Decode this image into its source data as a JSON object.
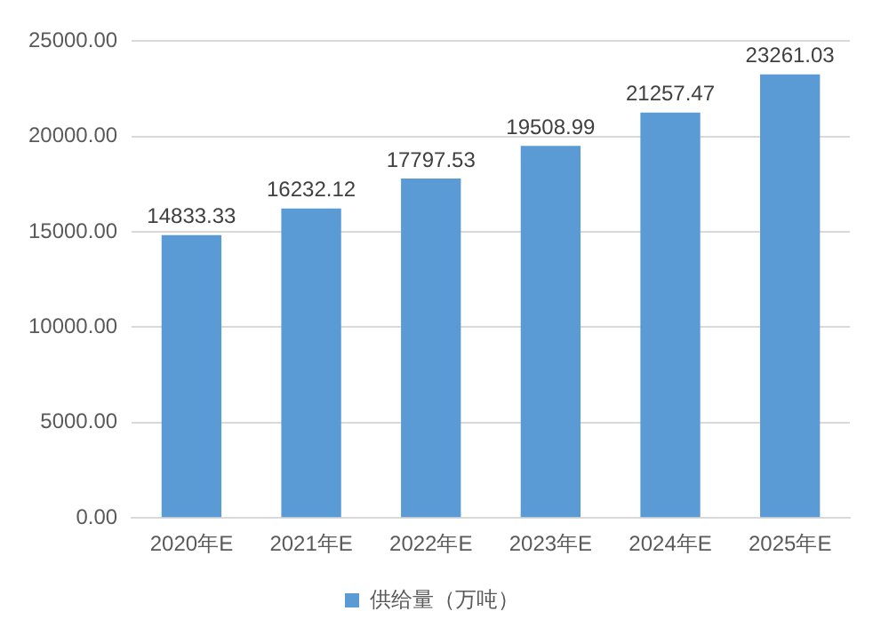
{
  "chart_data": {
    "type": "bar",
    "categories": [
      "2020年E",
      "2021年E",
      "2022年E",
      "2023年E",
      "2024年E",
      "2025年E"
    ],
    "series": [
      {
        "name": "供给量（万吨）",
        "color": "#5b9bd5",
        "values": [
          14833.33,
          16232.12,
          17797.53,
          19508.99,
          21257.47,
          23261.03
        ]
      }
    ],
    "ylim": [
      0,
      25000
    ],
    "yticks": [
      {
        "value": 0,
        "label": "0.00"
      },
      {
        "value": 5000,
        "label": "5000.00"
      },
      {
        "value": 10000,
        "label": "10000.00"
      },
      {
        "value": 15000,
        "label": "15000.00"
      },
      {
        "value": 20000,
        "label": "20000.00"
      },
      {
        "value": 25000,
        "label": "25000.00"
      }
    ],
    "grid": "y",
    "legend": "bottom",
    "data_labels": true
  }
}
